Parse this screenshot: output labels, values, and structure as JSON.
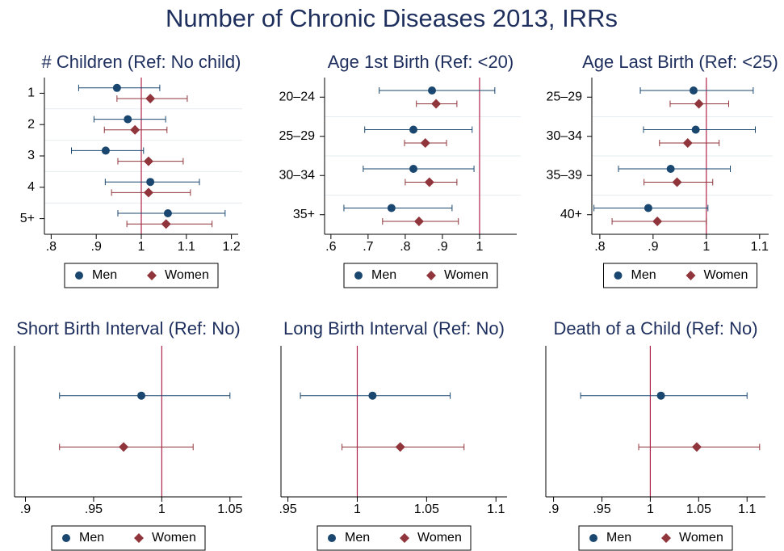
{
  "title": "Number of Chronic Diseases 2013, IRRs",
  "chart_data": [
    {
      "type": "coefplot",
      "title": "# Children (Ref: No child)",
      "categories": [
        "1",
        "2",
        "3",
        "4",
        "5+"
      ],
      "xlim": [
        0.785,
        1.215
      ],
      "xticks": [
        {
          "value": 0.8,
          "label": ".8"
        },
        {
          "value": 0.9,
          "label": ".9"
        },
        1,
        1.1,
        1.2
      ],
      "refline": 1,
      "legend": "bottom",
      "series": [
        {
          "name": "Men",
          "color": "#1a476f",
          "marker": "circle",
          "values": [
            0.946,
            0.97,
            0.921,
            1.02,
            1.059
          ],
          "lower": [
            0.861,
            0.895,
            0.845,
            0.92,
            0.948
          ],
          "upper": [
            1.041,
            1.054,
            1.005,
            1.129,
            1.186
          ]
        },
        {
          "name": "Women",
          "color": "#90353b",
          "marker": "diamond",
          "values": [
            1.02,
            0.986,
            1.016,
            1.016,
            1.055
          ],
          "lower": [
            0.946,
            0.918,
            0.948,
            0.934,
            0.968
          ],
          "upper": [
            1.102,
            1.057,
            1.093,
            1.109,
            1.157
          ]
        }
      ]
    },
    {
      "type": "coefplot",
      "title": "Age 1st Birth (Ref: <20)",
      "categories": [
        "20–24",
        "25–29",
        "30–34",
        "35+"
      ],
      "xlim": [
        0.583,
        1.1
      ],
      "xticks": [
        {
          "value": 0.6,
          "label": ".6"
        },
        {
          "value": 0.7,
          "label": ".7"
        },
        {
          "value": 0.8,
          "label": ".8"
        },
        {
          "value": 0.9,
          "label": ".9"
        },
        1
      ],
      "refline": 1,
      "legend": "bottom",
      "series": [
        {
          "name": "Men",
          "color": "#1a476f",
          "marker": "circle",
          "values": [
            0.872,
            0.822,
            0.822,
            0.763
          ],
          "lower": [
            0.73,
            0.691,
            0.687,
            0.635
          ],
          "upper": [
            1.041,
            0.98,
            0.985,
            0.926
          ]
        },
        {
          "name": "Women",
          "color": "#90353b",
          "marker": "diamond",
          "values": [
            0.883,
            0.854,
            0.865,
            0.837
          ],
          "lower": [
            0.83,
            0.798,
            0.8,
            0.739
          ],
          "upper": [
            0.939,
            0.911,
            0.939,
            0.943
          ]
        }
      ]
    },
    {
      "type": "coefplot",
      "title": "Age Last Birth (Ref: <25)",
      "categories": [
        "25–29",
        "30–34",
        "35–39",
        "40+"
      ],
      "xlim": [
        0.785,
        1.117
      ],
      "xticks": [
        {
          "value": 0.8,
          "label": ".8"
        },
        {
          "value": 0.9,
          "label": ".9"
        },
        1,
        1.1
      ],
      "refline": 1,
      "legend": "bottom",
      "series": [
        {
          "name": "Men",
          "color": "#1a476f",
          "marker": "circle",
          "values": [
            0.976,
            0.98,
            0.933,
            0.891
          ],
          "lower": [
            0.876,
            0.882,
            0.835,
            0.789
          ],
          "upper": [
            1.088,
            1.092,
            1.045,
            1.003
          ]
        },
        {
          "name": "Women",
          "color": "#90353b",
          "marker": "diamond",
          "values": [
            0.986,
            0.965,
            0.945,
            0.908
          ],
          "lower": [
            0.932,
            0.912,
            0.883,
            0.823
          ],
          "upper": [
            1.042,
            1.024,
            1.012,
            1.0
          ]
        }
      ]
    },
    {
      "type": "coefplot",
      "title": "Short Birth Interval (Ref: No)",
      "categories": [
        null
      ],
      "xlim": [
        0.892,
        1.059
      ],
      "xticks": [
        {
          "value": 0.9,
          "label": ".9"
        },
        {
          "value": 0.95,
          "label": ".95"
        },
        1,
        1.05
      ],
      "refline": 1,
      "legend": "bottom",
      "series": [
        {
          "name": "Men",
          "color": "#1a476f",
          "marker": "circle",
          "values": [
            0.985
          ],
          "lower": [
            0.925
          ],
          "upper": [
            1.05
          ]
        },
        {
          "name": "Women",
          "color": "#90353b",
          "marker": "diamond",
          "values": [
            0.972
          ],
          "lower": [
            0.925
          ],
          "upper": [
            1.023
          ]
        }
      ]
    },
    {
      "type": "coefplot",
      "title": "Long Birth Interval (Ref: No)",
      "categories": [
        null
      ],
      "xlim": [
        0.945,
        1.108
      ],
      "xticks": [
        {
          "value": 0.95,
          "label": ".95"
        },
        1,
        1.05,
        1.1
      ],
      "refline": 1,
      "legend": "bottom",
      "series": [
        {
          "name": "Men",
          "color": "#1a476f",
          "marker": "circle",
          "values": [
            1.011
          ],
          "lower": [
            0.959
          ],
          "upper": [
            1.067
          ]
        },
        {
          "name": "Women",
          "color": "#90353b",
          "marker": "diamond",
          "values": [
            1.031
          ],
          "lower": [
            0.989
          ],
          "upper": [
            1.077
          ]
        }
      ]
    },
    {
      "type": "coefplot",
      "title": "Death of a Child (Ref: No)",
      "categories": [
        null
      ],
      "xlim": [
        0.892,
        1.119
      ],
      "xticks": [
        {
          "value": 0.9,
          "label": ".9"
        },
        {
          "value": 0.95,
          "label": ".95"
        },
        1,
        1.05,
        1.1
      ],
      "refline": 1,
      "legend": "bottom",
      "series": [
        {
          "name": "Men",
          "color": "#1a476f",
          "marker": "circle",
          "values": [
            1.011
          ],
          "lower": [
            0.928
          ],
          "upper": [
            1.1
          ]
        },
        {
          "name": "Women",
          "color": "#90353b",
          "marker": "diamond",
          "values": [
            1.048
          ],
          "lower": [
            0.988
          ],
          "upper": [
            1.113
          ]
        }
      ]
    }
  ]
}
